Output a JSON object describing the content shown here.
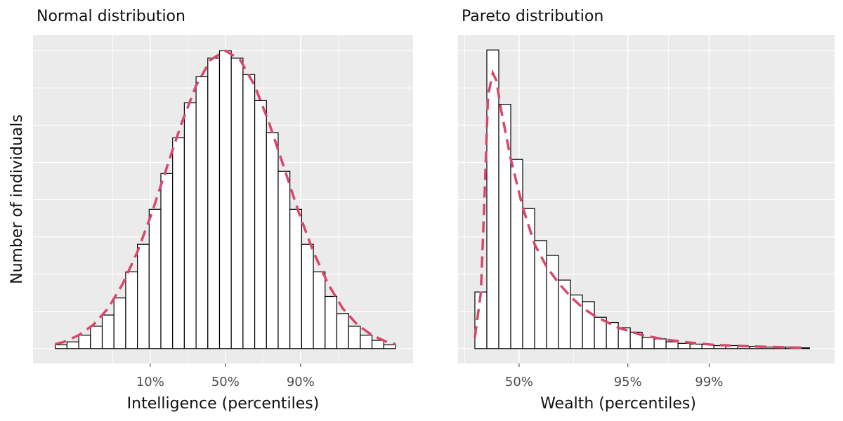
{
  "chart_data": [
    {
      "type": "histogram",
      "title": "Normal distribution",
      "xlabel": "Intelligence (percentiles)",
      "ylabel": "Number of individuals",
      "bins": [
        -2.9,
        -2.7,
        -2.5,
        -2.3,
        -2.1,
        -1.9,
        -1.7,
        -1.5,
        -1.3,
        -1.1,
        -0.9,
        -0.7,
        -0.5,
        -0.3,
        -0.1,
        0.1,
        0.3,
        0.5,
        0.7,
        0.9,
        1.1,
        1.3,
        1.5,
        1.7,
        1.9,
        2.1,
        2.3,
        2.5,
        2.7,
        2.9
      ],
      "values": [
        5,
        9,
        18,
        30,
        45,
        68,
        103,
        140,
        187,
        235,
        283,
        330,
        365,
        390,
        400,
        390,
        368,
        333,
        290,
        238,
        187,
        140,
        103,
        70,
        47,
        30,
        18,
        11,
        5
      ],
      "color": "#ffffff",
      "curve": {
        "color": "#d9476a",
        "x": [
          -2.9,
          -2.75,
          -2.5,
          -2.25,
          -2,
          -1.75,
          -1.5,
          -1.25,
          -1,
          -0.75,
          -0.5,
          -0.25,
          0,
          0.25,
          0.5,
          0.75,
          1,
          1.25,
          1.5,
          1.75,
          2,
          2.25,
          2.5,
          2.75,
          2.9
        ],
        "y": [
          6,
          9,
          18,
          32,
          54,
          87,
          130,
          183,
          243,
          302,
          353,
          388,
          400,
          388,
          353,
          302,
          243,
          183,
          130,
          87,
          54,
          32,
          18,
          9,
          6
        ]
      },
      "xlim": [
        -3.28,
        3.2
      ],
      "ylim": [
        -20,
        421
      ],
      "xticks": [
        {
          "value": -1.2816,
          "label": "10%"
        },
        {
          "value": 0,
          "label": "50%"
        },
        {
          "value": 1.2816,
          "label": "90%"
        }
      ],
      "yticks": [
        0,
        50,
        100,
        150,
        200,
        250,
        300,
        350,
        400
      ],
      "grid": true
    },
    {
      "type": "histogram",
      "title": "Pareto distribution",
      "xlabel": "Wealth (percentiles)",
      "bins": [
        0,
        1,
        2,
        3,
        4,
        5,
        6,
        7,
        8,
        9,
        10,
        11,
        12,
        13,
        14,
        15,
        16,
        17,
        18,
        19,
        20,
        21,
        22,
        23,
        24,
        25,
        26,
        27,
        28
      ],
      "values": [
        76,
        401,
        328,
        254,
        188,
        145,
        125,
        92,
        72,
        63,
        42,
        35,
        28,
        22,
        15,
        13,
        9,
        7,
        6,
        5,
        4,
        4,
        3,
        3,
        2,
        2,
        2,
        1
      ],
      "color": "#ffffff",
      "curve": {
        "color": "#d9476a",
        "x": [
          0,
          0.5,
          0.8,
          1.1,
          1.5,
          1.8,
          2.2,
          3,
          4,
          5,
          6,
          7,
          8,
          9,
          10,
          12,
          14,
          16,
          18,
          20,
          23,
          27.7
        ],
        "y": [
          15,
          75,
          200,
          340,
          370,
          360,
          320,
          255,
          190,
          140,
          110,
          88,
          70,
          55,
          44,
          28,
          18,
          12,
          8,
          5,
          3,
          1
        ]
      },
      "xlim": [
        -1.41,
        30.1
      ],
      "ylim": [
        -20,
        421
      ],
      "xticks": [
        {
          "value": 3.7,
          "label": "50%"
        },
        {
          "value": 12.8,
          "label": "95%"
        },
        {
          "value": 19.6,
          "label": "99%"
        }
      ],
      "yticks": [
        0,
        50,
        100,
        150,
        200,
        250,
        300,
        350,
        400
      ],
      "grid": true
    }
  ]
}
